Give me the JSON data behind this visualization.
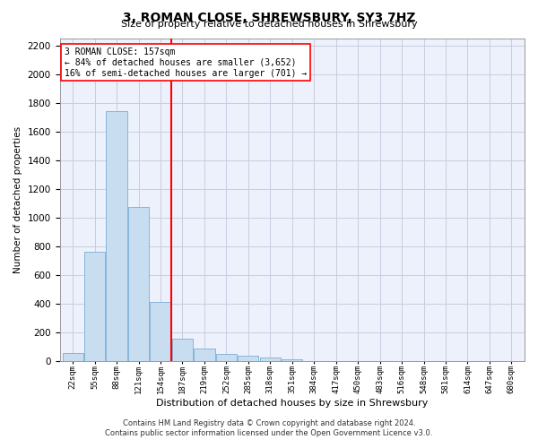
{
  "title": "3, ROMAN CLOSE, SHREWSBURY, SY3 7HZ",
  "subtitle": "Size of property relative to detached houses in Shrewsbury",
  "xlabel": "Distribution of detached houses by size in Shrewsbury",
  "ylabel": "Number of detached properties",
  "footer_line1": "Contains HM Land Registry data © Crown copyright and database right 2024.",
  "footer_line2": "Contains public sector information licensed under the Open Government Licence v3.0.",
  "bar_labels": [
    "22sqm",
    "55sqm",
    "88sqm",
    "121sqm",
    "154sqm",
    "187sqm",
    "219sqm",
    "252sqm",
    "285sqm",
    "318sqm",
    "351sqm",
    "384sqm",
    "417sqm",
    "450sqm",
    "483sqm",
    "516sqm",
    "548sqm",
    "581sqm",
    "614sqm",
    "647sqm",
    "680sqm"
  ],
  "bar_values": [
    55,
    760,
    1740,
    1075,
    415,
    155,
    85,
    48,
    38,
    28,
    14,
    0,
    0,
    0,
    0,
    0,
    0,
    0,
    0,
    0,
    0
  ],
  "bar_color": "#c8ddf0",
  "bar_edgecolor": "#7aaed4",
  "vline_color": "red",
  "vline_position": 4.5,
  "annotation_text": "3 ROMAN CLOSE: 157sqm\n← 84% of detached houses are smaller (3,652)\n16% of semi-detached houses are larger (701) →",
  "annotation_box_color": "white",
  "annotation_box_edgecolor": "red",
  "ylim": [
    0,
    2250
  ],
  "yticks": [
    0,
    200,
    400,
    600,
    800,
    1000,
    1200,
    1400,
    1600,
    1800,
    2000,
    2200
  ],
  "background_color": "#edf1fb",
  "grid_color": "#c8cce0"
}
